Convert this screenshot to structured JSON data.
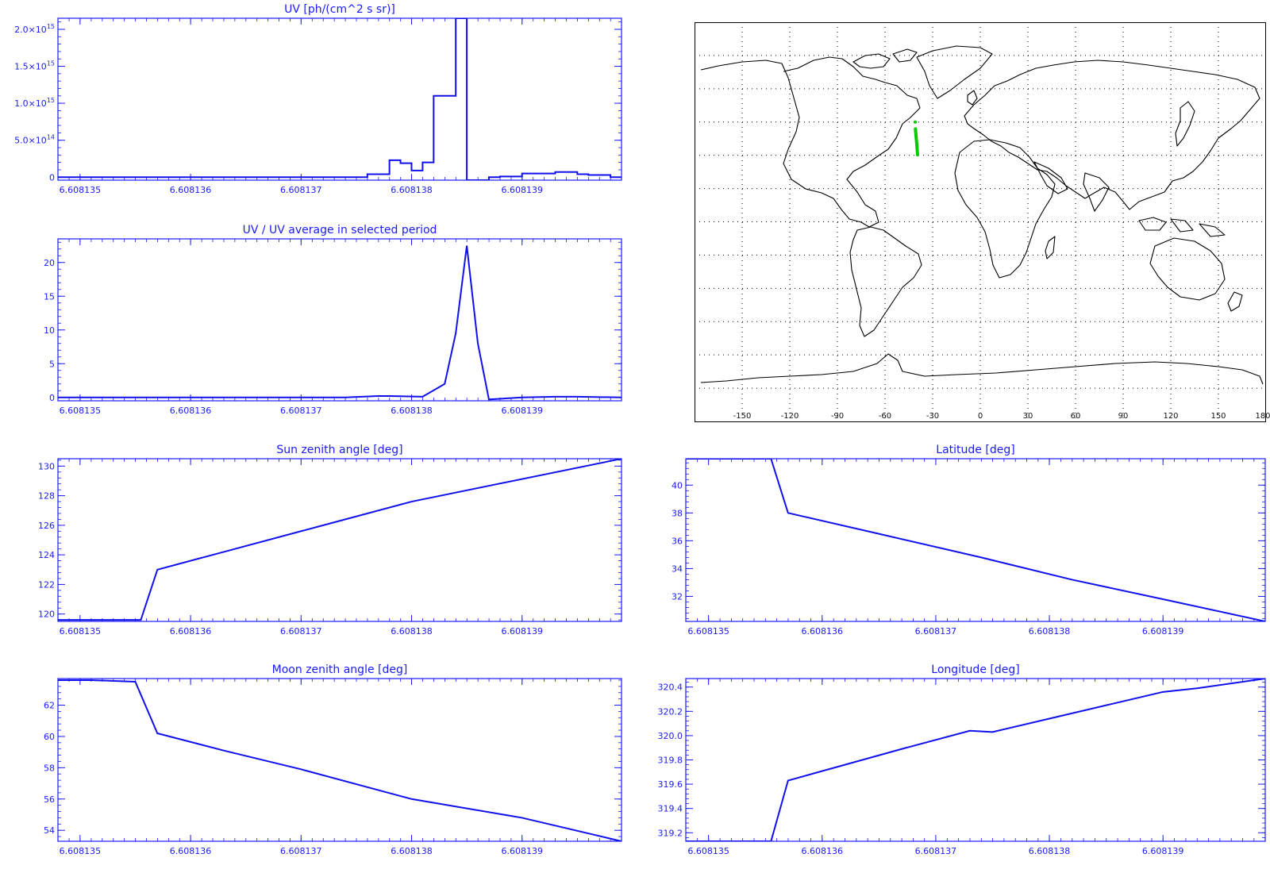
{
  "chart_data": [
    {
      "id": "uv",
      "type": "step",
      "title": "UV [ph/(cm^2 s sr)]",
      "xlim": [
        6.6081348,
        6.6081399
      ],
      "ylim": [
        -40000000000000,
        2150000000000000
      ],
      "x_ticks": [
        6.608135,
        6.608136,
        6.608137,
        6.608138,
        6.608139
      ],
      "x_tick_labels": [
        "6.608135",
        "6.608136",
        "6.608137",
        "6.608138",
        "6.608139"
      ],
      "y_ticks": [
        0,
        500000000000000,
        1000000000000000,
        1500000000000000,
        2000000000000000
      ],
      "y_tick_labels": [
        {
          "base": "0",
          "exp": ""
        },
        {
          "base": "5.0×10",
          "exp": "14"
        },
        {
          "base": "1.0×10",
          "exp": "15"
        },
        {
          "base": "1.5×10",
          "exp": "15"
        },
        {
          "base": "2.0×10",
          "exp": "15"
        }
      ],
      "series": [
        {
          "x": [
            6.6081348,
            6.6081376,
            6.6081378,
            6.6081379,
            6.608138,
            6.6081381,
            6.6081382,
            6.6081384,
            6.6081385,
            6.6081387,
            6.6081388,
            6.608139,
            6.6081393,
            6.6081395,
            6.6081396,
            6.6081398,
            6.6081399
          ],
          "y": [
            0,
            40000000000000,
            230000000000000,
            190000000000000,
            90000000000000,
            200000000000000,
            1100000000000000,
            2150000000000000,
            -40000000000000,
            0,
            10000000000000,
            50000000000000,
            70000000000000,
            40000000000000,
            30000000000000,
            0,
            0
          ]
        }
      ]
    },
    {
      "id": "uv-ratio",
      "type": "line",
      "title": "UV / UV average in selected period",
      "xlim": [
        6.6081348,
        6.6081399
      ],
      "ylim": [
        -0.5,
        23.5
      ],
      "x_ticks": [
        6.608135,
        6.608136,
        6.608137,
        6.608138,
        6.608139
      ],
      "x_tick_labels": [
        "6.608135",
        "6.608136",
        "6.608137",
        "6.608138",
        "6.608139"
      ],
      "y_ticks": [
        0,
        5,
        10,
        15,
        20
      ],
      "y_tick_labels": [
        "0",
        "5",
        "10",
        "15",
        "20"
      ],
      "series": [
        {
          "x": [
            6.6081348,
            6.6081374,
            6.6081377,
            6.6081378,
            6.6081381,
            6.6081383,
            6.6081384,
            6.6081385,
            6.6081386,
            6.6081387,
            6.608139,
            6.6081393,
            6.6081395,
            6.6081399
          ],
          "y": [
            0,
            0,
            0.2,
            0.2,
            0.1,
            2,
            9.5,
            22.5,
            8,
            -0.3,
            0,
            0.1,
            0.1,
            0
          ]
        }
      ]
    },
    {
      "id": "sun-zenith",
      "type": "line",
      "title": "Sun zenith angle [deg]",
      "xlim": [
        6.6081348,
        6.6081399
      ],
      "ylim": [
        119.5,
        130.5
      ],
      "x_ticks": [
        6.608135,
        6.608136,
        6.608137,
        6.608138,
        6.608139
      ],
      "x_tick_labels": [
        "6.608135",
        "6.608136",
        "6.608137",
        "6.608138",
        "6.608139"
      ],
      "y_ticks": [
        120,
        122,
        124,
        126,
        128,
        130
      ],
      "y_tick_labels": [
        "120",
        "122",
        "124",
        "126",
        "128",
        "130"
      ],
      "series": [
        {
          "x": [
            6.6081348,
            6.60813555,
            6.6081357,
            6.6081363,
            6.6081372,
            6.608138,
            6.6081399
          ],
          "y": [
            119.6,
            119.6,
            123.0,
            124.2,
            126.0,
            127.6,
            130.5
          ]
        }
      ]
    },
    {
      "id": "latitude",
      "type": "line",
      "title": "Latitude [deg]",
      "xlim": [
        6.6081348,
        6.6081399
      ],
      "ylim": [
        30.2,
        41.9
      ],
      "x_ticks": [
        6.608135,
        6.608136,
        6.608137,
        6.608138,
        6.608139
      ],
      "x_tick_labels": [
        "6.608135",
        "6.608136",
        "6.608137",
        "6.608138",
        "6.608139"
      ],
      "y_ticks": [
        32,
        34,
        36,
        38,
        40
      ],
      "y_tick_labels": [
        "32",
        "34",
        "36",
        "38",
        "40"
      ],
      "series": [
        {
          "x": [
            6.6081348,
            6.60813555,
            6.6081357,
            6.6081365,
            6.6081374,
            6.6081382,
            6.608139,
            6.6081399
          ],
          "y": [
            41.9,
            41.9,
            38.0,
            36.5,
            34.8,
            33.2,
            31.8,
            30.2
          ]
        }
      ]
    },
    {
      "id": "moon-zenith",
      "type": "line",
      "title": "Moon zenith angle [deg]",
      "xlim": [
        6.6081348,
        6.6081399
      ],
      "ylim": [
        53.3,
        63.7
      ],
      "x_ticks": [
        6.608135,
        6.608136,
        6.608137,
        6.608138,
        6.608139
      ],
      "x_tick_labels": [
        "6.608135",
        "6.608136",
        "6.608137",
        "6.608138",
        "6.608139"
      ],
      "y_ticks": [
        54,
        56,
        58,
        60,
        62
      ],
      "y_tick_labels": [
        "54",
        "56",
        "58",
        "60",
        "62"
      ],
      "series": [
        {
          "x": [
            6.6081348,
            6.6081351,
            6.6081355,
            6.6081357,
            6.6081363,
            6.608137,
            6.608138,
            6.608139,
            6.6081399
          ],
          "y": [
            63.6,
            63.6,
            63.5,
            60.2,
            59.1,
            57.9,
            56.0,
            54.8,
            53.3
          ]
        }
      ]
    },
    {
      "id": "longitude",
      "type": "line",
      "title": "Longitude [deg]",
      "xlim": [
        6.6081348,
        6.6081399
      ],
      "ylim": [
        319.13,
        320.47
      ],
      "x_ticks": [
        6.608135,
        6.608136,
        6.608137,
        6.608138,
        6.608139
      ],
      "x_tick_labels": [
        "6.608135",
        "6.608136",
        "6.608137",
        "6.608138",
        "6.608139"
      ],
      "y_ticks": [
        319.2,
        319.4,
        319.6,
        319.8,
        320.0,
        320.2,
        320.4
      ],
      "y_tick_labels": [
        "319.2",
        "319.4",
        "319.6",
        "319.8",
        "320.0",
        "320.2",
        "320.4"
      ],
      "series": [
        {
          "x": [
            6.6081348,
            6.60813555,
            6.6081357,
            6.6081362,
            6.6081367,
            6.6081373,
            6.6081375,
            6.608138,
            6.6081385,
            6.608139,
            6.6081393,
            6.6081399
          ],
          "y": [
            319.13,
            319.13,
            319.63,
            319.76,
            319.89,
            320.04,
            320.03,
            320.14,
            320.25,
            320.36,
            320.39,
            320.47
          ]
        }
      ]
    }
  ],
  "map": {
    "lon_ticks": [
      -150,
      -120,
      -90,
      -60,
      -30,
      0,
      30,
      60,
      90,
      120,
      150,
      180
    ],
    "lon_tick_labels": [
      "-150",
      "-120",
      "-90",
      "-60",
      "-30",
      "0",
      "30",
      "60",
      "90",
      "120",
      "150",
      "180"
    ],
    "lat_range": [
      -90,
      90
    ],
    "lon_range": [
      -180,
      180
    ],
    "track": {
      "lat": [
        41.9,
        38.0,
        36.5,
        34.8,
        33.2,
        31.8,
        30.2
      ],
      "lon": [
        -40.87,
        -40.37,
        -40.2,
        -39.98,
        -39.8,
        -39.66,
        -39.53
      ],
      "start_marker_lat": 45.0,
      "start_marker_lon": -41.0
    },
    "colors": {
      "coast": "#000000",
      "grid": "#000000",
      "track": "#00cc00"
    }
  },
  "colors": {
    "axis": "#1a1aff",
    "series": "#1010ee"
  }
}
